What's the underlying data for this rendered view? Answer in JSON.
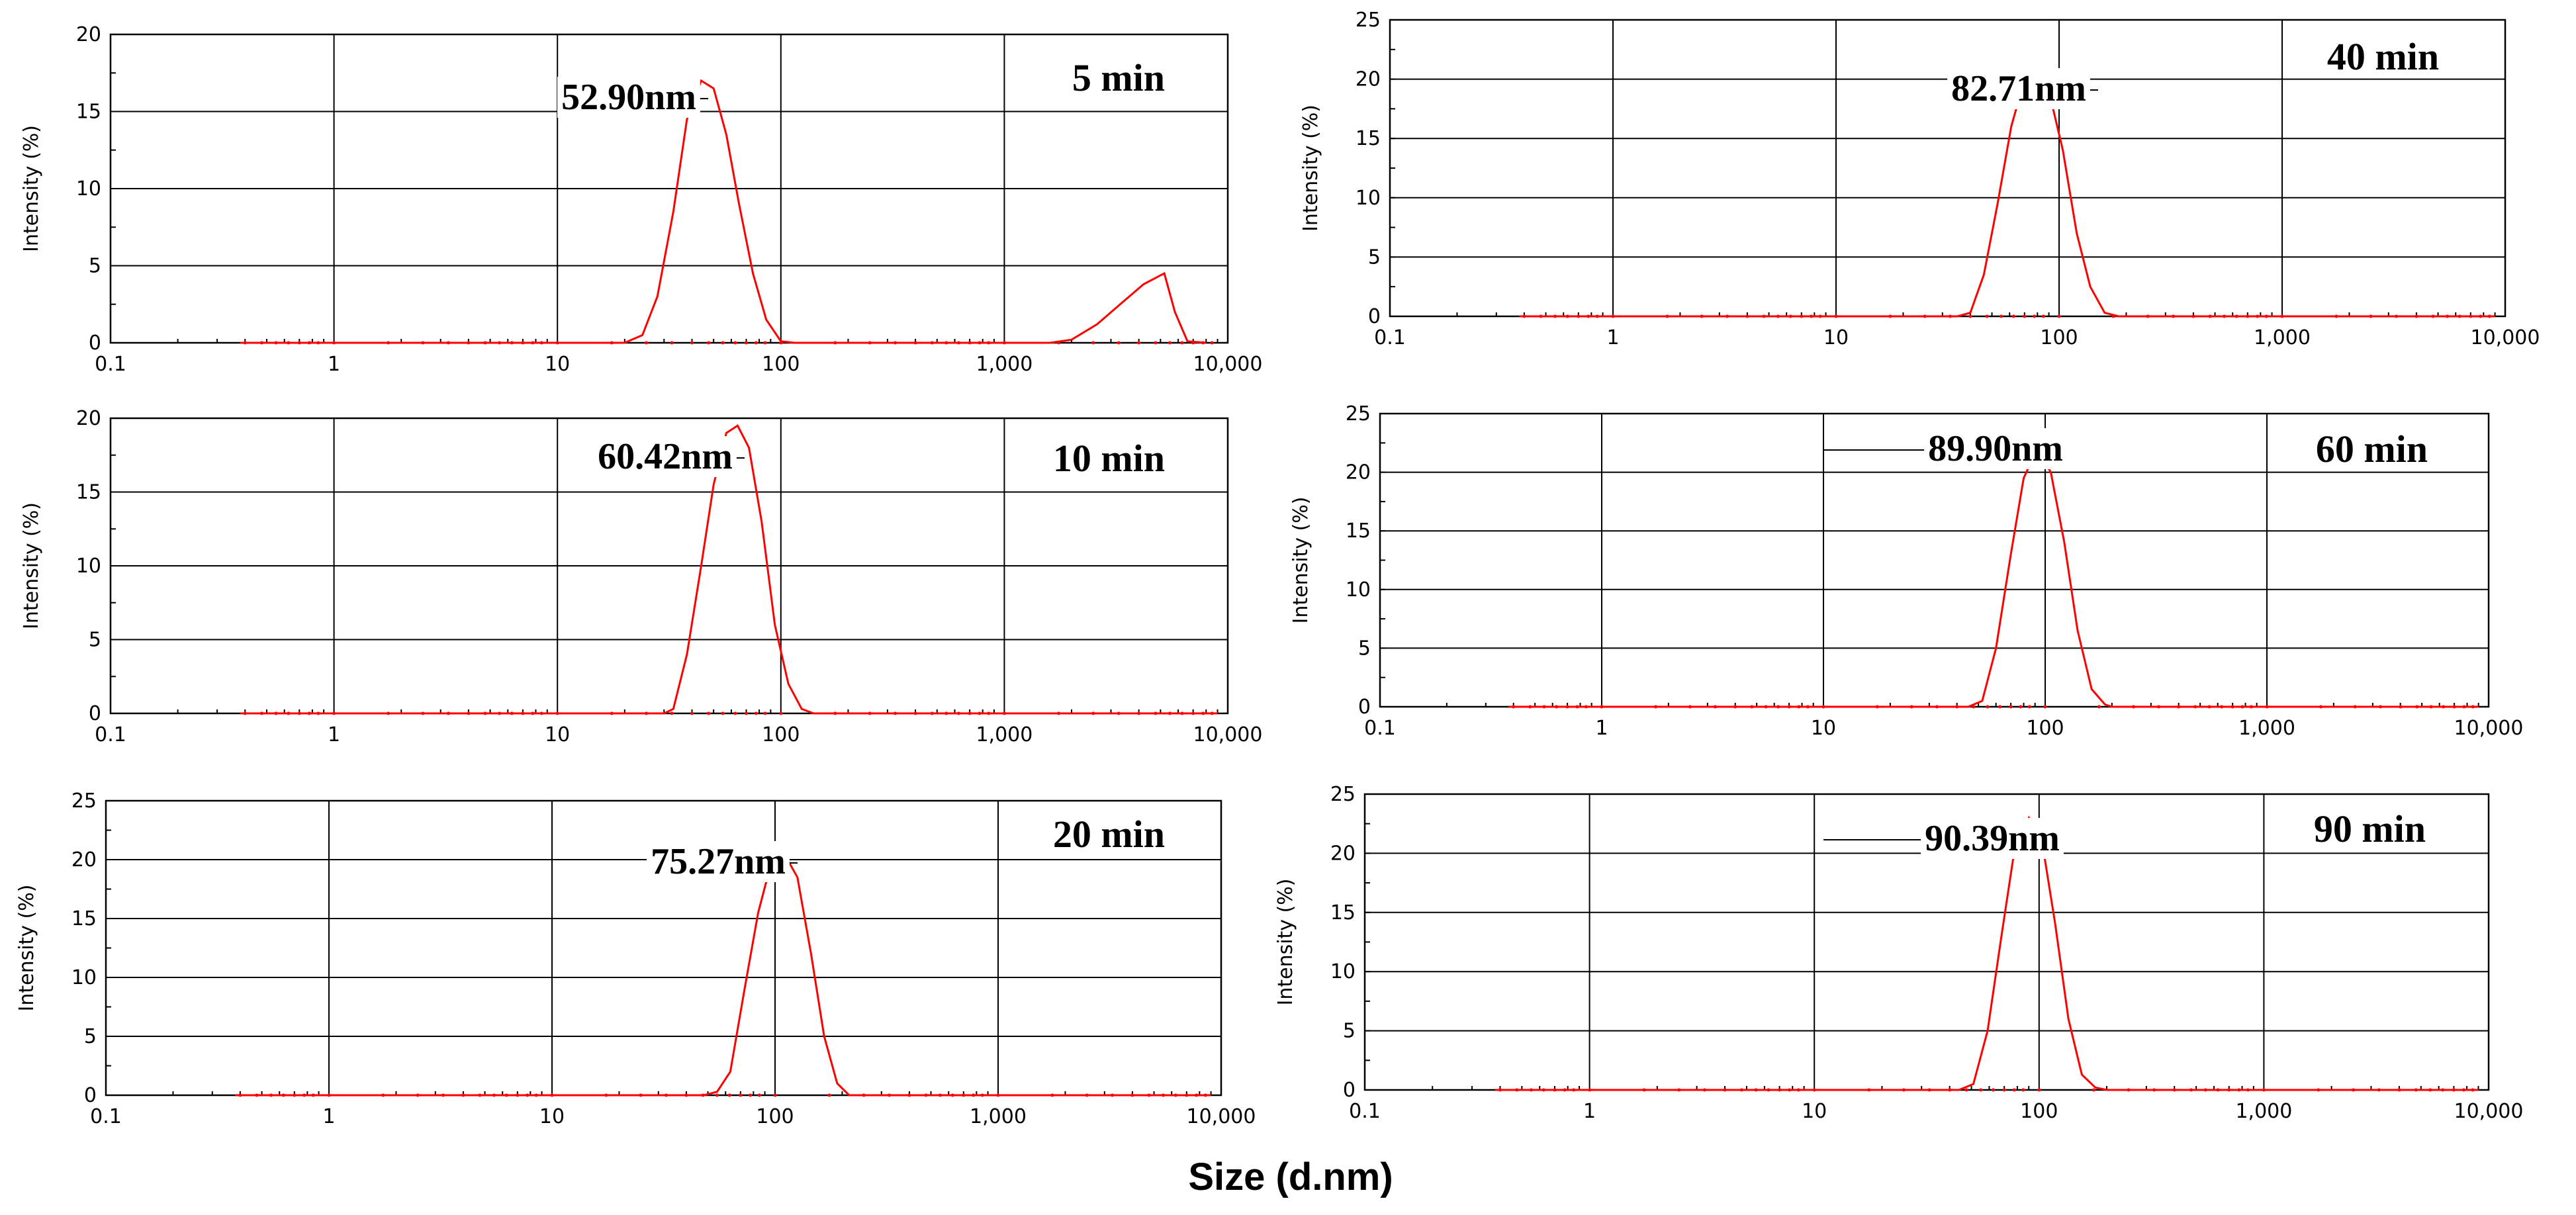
{
  "chart_data": [
    {
      "type": "line",
      "title": "5 min",
      "annotation": "52.90nm",
      "xscale": "log",
      "xlim": [
        0.1,
        10000
      ],
      "ylim": [
        0,
        20
      ],
      "xticks": [
        0.1,
        1,
        10,
        100,
        1000,
        10000
      ],
      "xtick_labels": [
        "0.1",
        "1",
        "10",
        "100",
        "1,000",
        "10,000"
      ],
      "yticks": [
        0,
        5,
        10,
        15,
        20
      ],
      "ytick_labels": [
        "0",
        "5",
        "10",
        "15",
        "20"
      ],
      "ylabel": "Intensity (%)",
      "color": "#ff0000",
      "x": [
        0.38,
        20,
        24,
        28,
        33,
        38,
        44,
        50,
        57,
        65,
        75,
        86,
        100,
        115,
        1600,
        2000,
        2600,
        3300,
        4200,
        5200,
        5800,
        6600,
        8000
      ],
      "y": [
        0,
        0,
        0.5,
        3,
        8.5,
        14.5,
        17.0,
        16.5,
        13.5,
        9,
        4.5,
        1.5,
        0.1,
        0,
        0,
        0.2,
        1.2,
        2.5,
        3.8,
        4.5,
        2.0,
        0.1,
        0
      ]
    },
    {
      "type": "line",
      "title": "40 min",
      "annotation": "82.71nm",
      "xscale": "log",
      "xlim": [
        0.1,
        10000
      ],
      "ylim": [
        0,
        25
      ],
      "xticks": [
        0.1,
        1,
        10,
        100,
        1000,
        10000
      ],
      "xtick_labels": [
        "0.1",
        "1",
        "10",
        "100",
        "1,000",
        "10,000"
      ],
      "yticks": [
        0,
        5,
        10,
        15,
        20,
        25
      ],
      "ytick_labels": [
        "0",
        "5",
        "10",
        "15",
        "20",
        "25"
      ],
      "ylabel": "Intensity (%)",
      "color": "#ff0000",
      "x": [
        0.38,
        35,
        40,
        46,
        53,
        61,
        70,
        79,
        90,
        104,
        120,
        138,
        160,
        185,
        9000
      ],
      "y": [
        0,
        0,
        0.3,
        3.5,
        9.5,
        16,
        20,
        20.5,
        19,
        14,
        7,
        2.5,
        0.3,
        0,
        0
      ]
    },
    {
      "type": "line",
      "title": "10 min",
      "annotation": "60.42nm",
      "xscale": "log",
      "xlim": [
        0.1,
        10000
      ],
      "ylim": [
        0,
        20
      ],
      "xticks": [
        0.1,
        1,
        10,
        100,
        1000,
        10000
      ],
      "xtick_labels": [
        "0.1",
        "1",
        "10",
        "100",
        "1,000",
        "10,000"
      ],
      "yticks": [
        0,
        5,
        10,
        15,
        20
      ],
      "ytick_labels": [
        "0",
        "5",
        "10",
        "15",
        "20"
      ],
      "ylabel": "Intensity (%)",
      "color": "#ff0000",
      "x": [
        0.38,
        30,
        33,
        38,
        44,
        50,
        57,
        64,
        72,
        82,
        94,
        108,
        124,
        140,
        9000
      ],
      "y": [
        0,
        0,
        0.3,
        4,
        10,
        15.5,
        19,
        19.5,
        18,
        13,
        6,
        2,
        0.3,
        0,
        0
      ]
    },
    {
      "type": "line",
      "title": "60 min",
      "annotation": "89.90nm",
      "xscale": "log",
      "xlim": [
        0.1,
        10000
      ],
      "ylim": [
        0,
        25
      ],
      "xticks": [
        0.1,
        1,
        10,
        100,
        1000,
        10000
      ],
      "xtick_labels": [
        "0.1",
        "1",
        "10",
        "100",
        "1,000",
        "10,000"
      ],
      "yticks": [
        0,
        5,
        10,
        15,
        20,
        25
      ],
      "ytick_labels": [
        "0",
        "5",
        "10",
        "15",
        "20",
        "25"
      ],
      "ylabel": "Intensity (%)",
      "color": "#ff0000",
      "x": [
        0.38,
        45,
        52,
        60,
        70,
        80,
        92,
        106,
        122,
        140,
        162,
        186,
        200,
        9000
      ],
      "y": [
        0,
        0,
        0.5,
        5,
        13,
        19.5,
        22,
        20,
        14,
        6.5,
        1.5,
        0.2,
        0,
        0
      ]
    },
    {
      "type": "line",
      "title": "20 min",
      "annotation": "75.27nm",
      "xscale": "log",
      "xlim": [
        0.1,
        10000
      ],
      "ylim": [
        0,
        25
      ],
      "xticks": [
        0.1,
        1,
        10,
        100,
        1000,
        10000
      ],
      "xtick_labels": [
        "0.1",
        "1",
        "10",
        "100",
        "1,000",
        "10,000"
      ],
      "yticks": [
        0,
        5,
        10,
        15,
        20,
        25
      ],
      "ytick_labels": [
        "0",
        "5",
        "10",
        "15",
        "20",
        "25"
      ],
      "ylabel": "Intensity (%)",
      "color": "#ff0000",
      "x": [
        0.38,
        48,
        55,
        63,
        73,
        84,
        97,
        110,
        126,
        145,
        166,
        190,
        215,
        9000
      ],
      "y": [
        0,
        0,
        0.3,
        2,
        9,
        15.5,
        20,
        20.5,
        18.5,
        12,
        5,
        1,
        0,
        0
      ]
    },
    {
      "type": "line",
      "title": "90 min",
      "annotation": "90.39nm",
      "xscale": "log",
      "xlim": [
        0.1,
        10000
      ],
      "ylim": [
        0,
        25
      ],
      "xticks": [
        0.1,
        1,
        10,
        100,
        1000,
        10000
      ],
      "xtick_labels": [
        "0.1",
        "1",
        "10",
        "100",
        "1,000",
        "10,000"
      ],
      "yticks": [
        0,
        5,
        10,
        15,
        20,
        25
      ],
      "ytick_labels": [
        "0",
        "5",
        "10",
        "15",
        "20",
        "25"
      ],
      "ylabel": "Intensity (%)",
      "color": "#ff0000",
      "x": [
        0.38,
        44,
        51,
        59,
        68,
        78,
        90,
        103,
        118,
        135,
        155,
        178,
        200,
        9000
      ],
      "y": [
        0,
        0,
        0.5,
        5,
        13,
        20.5,
        23,
        21,
        14,
        6,
        1.3,
        0.2,
        0,
        0
      ]
    }
  ],
  "xlabel": "Size (d.nm)"
}
